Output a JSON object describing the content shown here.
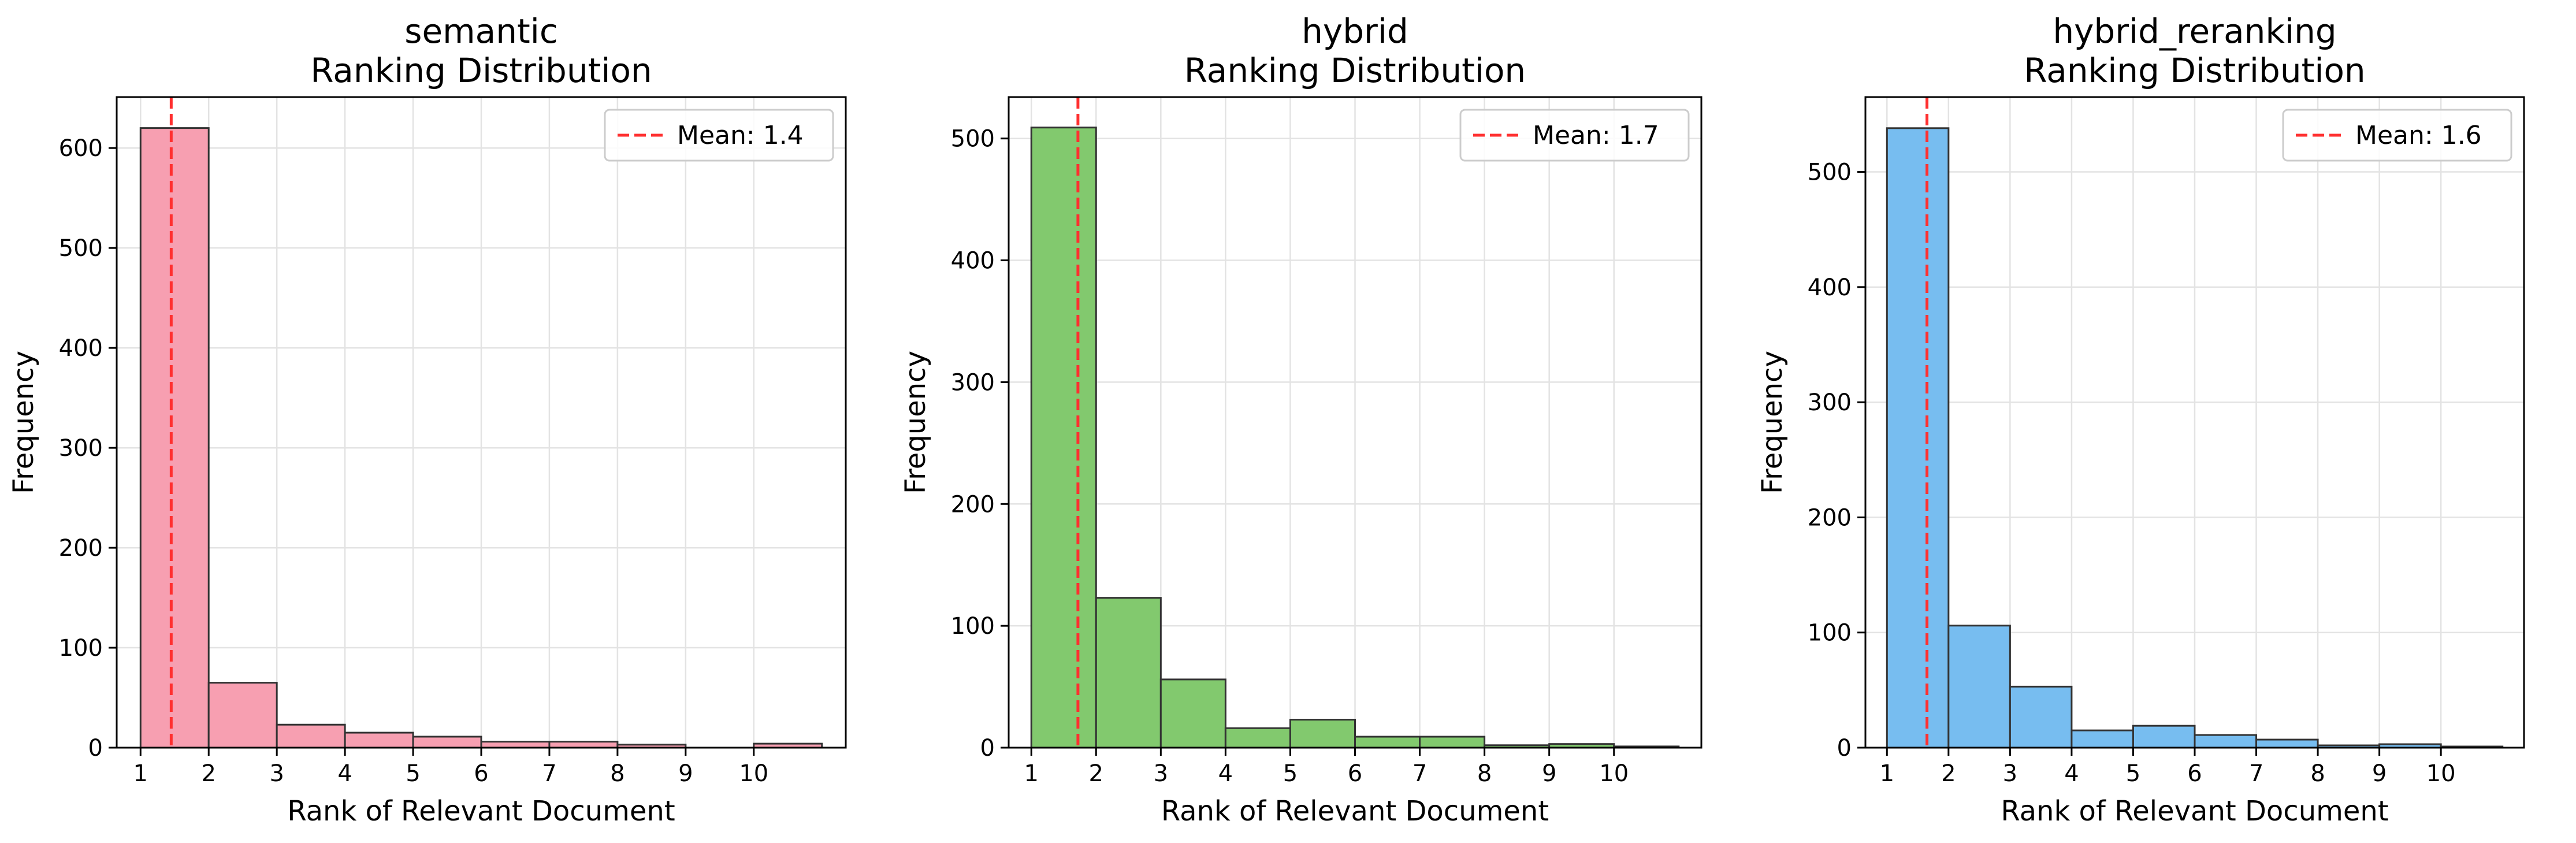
{
  "chart_data": [
    {
      "type": "bar",
      "title": "semantic\nRanking Distribution",
      "xlabel": "Rank of Relevant Document",
      "ylabel": "Frequency",
      "bin_edges": [
        1,
        2,
        3,
        4,
        5,
        6,
        7,
        8,
        9,
        10,
        11
      ],
      "values": [
        620,
        65,
        23,
        15,
        11,
        6,
        6,
        3,
        0,
        4
      ],
      "xticks": [
        1,
        2,
        3,
        4,
        5,
        6,
        7,
        8,
        9,
        10
      ],
      "yticks": [
        0,
        100,
        200,
        300,
        400,
        500,
        600
      ],
      "xlim": [
        0.65,
        11.35
      ],
      "ylim": [
        0,
        651
      ],
      "mean": 1.45,
      "mean_label": "Mean: 1.4",
      "bar_color": "#f79fb1",
      "mean_color": "#ff3030",
      "grid": true,
      "legend_position": "top-right"
    },
    {
      "type": "bar",
      "title": "hybrid\nRanking Distribution",
      "xlabel": "Rank of Relevant Document",
      "ylabel": "Frequency",
      "bin_edges": [
        1,
        2,
        3,
        4,
        5,
        6,
        7,
        8,
        9,
        10,
        11
      ],
      "values": [
        509,
        123,
        56,
        16,
        23,
        9,
        9,
        2,
        3,
        1
      ],
      "xticks": [
        1,
        2,
        3,
        4,
        5,
        6,
        7,
        8,
        9,
        10
      ],
      "yticks": [
        0,
        100,
        200,
        300,
        400,
        500
      ],
      "xlim": [
        0.65,
        11.35
      ],
      "ylim": [
        0,
        534
      ],
      "mean": 1.72,
      "mean_label": "Mean: 1.7",
      "bar_color": "#82c96e",
      "mean_color": "#ff3030",
      "grid": true,
      "legend_position": "top-right"
    },
    {
      "type": "bar",
      "title": "hybrid_reranking\nRanking Distribution",
      "xlabel": "Rank of Relevant Document",
      "ylabel": "Frequency",
      "bin_edges": [
        1,
        2,
        3,
        4,
        5,
        6,
        7,
        8,
        9,
        10,
        11
      ],
      "values": [
        538,
        106,
        53,
        15,
        19,
        11,
        7,
        2,
        3,
        1
      ],
      "xticks": [
        1,
        2,
        3,
        4,
        5,
        6,
        7,
        8,
        9,
        10
      ],
      "yticks": [
        0,
        100,
        200,
        300,
        400,
        500
      ],
      "xlim": [
        0.65,
        11.35
      ],
      "ylim": [
        0,
        565
      ],
      "mean": 1.65,
      "mean_label": "Mean: 1.6",
      "bar_color": "#77bdf0",
      "mean_color": "#ff3030",
      "grid": true,
      "legend_position": "top-right"
    }
  ]
}
